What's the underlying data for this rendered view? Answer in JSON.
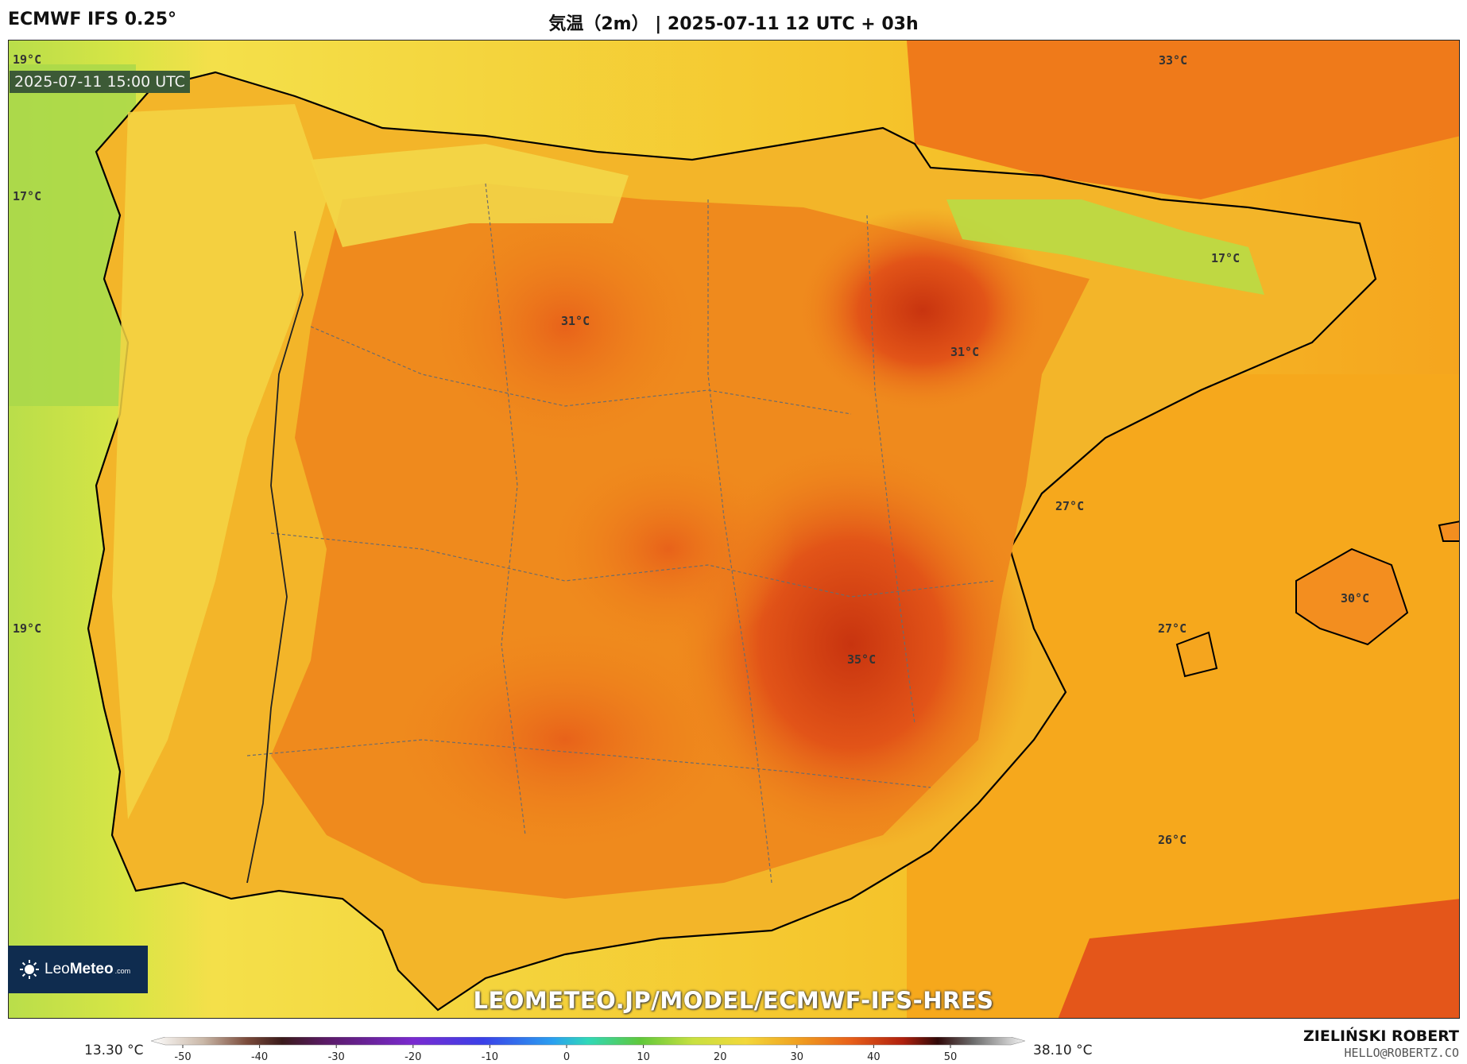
{
  "header": {
    "model": "ECMWF IFS 0.25°",
    "run": "気温（2m） | 2025-07-11 12 UTC + 03h"
  },
  "map": {
    "valid_time": "2025-07-11 15:00 UTC",
    "temperature_labels": [
      {
        "text": "19°C"
      },
      {
        "text": "17°C"
      },
      {
        "text": "19°C"
      },
      {
        "text": "33°C"
      },
      {
        "text": "17°C"
      },
      {
        "text": "31°C"
      },
      {
        "text": "31°C"
      },
      {
        "text": "27°C"
      },
      {
        "text": "30°C"
      },
      {
        "text": "27°C"
      },
      {
        "text": "35°C"
      },
      {
        "text": "26°C"
      }
    ],
    "colors": {
      "ocean_cool": "#c9e34a",
      "ocean_warm": "#f7b21a",
      "land_mild": "#f5d53a",
      "land_warm": "#f08a1c",
      "land_hot": "#e5561a",
      "land_hottest": "#c8340f",
      "coast": "#000000"
    }
  },
  "logo": {
    "brand_a": "Leo",
    "brand_b": "Meteo",
    "suffix": ".com"
  },
  "watermark": "LEOMETEO.JP/MODEL/ECMWF-IFS-HRES",
  "footer": {
    "min": "13.30 °C",
    "max": "38.10 °C",
    "scale_ticks": [
      "-50",
      "-40",
      "-30",
      "-20",
      "-10",
      "0",
      "10",
      "20",
      "30",
      "40",
      "50"
    ],
    "author": "ZIELIŃSKI ROBERT",
    "email": "HELLO@ROBERTZ.CO"
  }
}
